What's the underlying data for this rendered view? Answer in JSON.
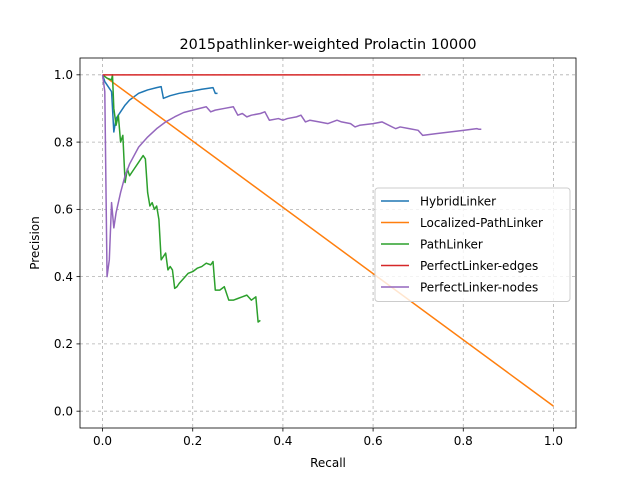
{
  "chart_data": {
    "type": "line",
    "title": "2015pathlinker-weighted Prolactin 10000",
    "xlabel": "Recall",
    "ylabel": "Precision",
    "xlim": [
      -0.05,
      1.05
    ],
    "ylim": [
      -0.05,
      1.05
    ],
    "xticks": [
      0.0,
      0.2,
      0.4,
      0.6,
      0.8,
      1.0
    ],
    "yticks": [
      0.0,
      0.2,
      0.4,
      0.6,
      0.8,
      1.0
    ],
    "tick_labels_x": [
      "0.0",
      "0.2",
      "0.4",
      "0.6",
      "0.8",
      "1.0"
    ],
    "tick_labels_y": [
      "0.0",
      "0.2",
      "0.4",
      "0.6",
      "0.8",
      "1.0"
    ],
    "grid": true,
    "legend_position": "center-right",
    "series": [
      {
        "name": "HybridLinker",
        "color": "#1f77b4",
        "x": [
          0.0,
          0.005,
          0.01,
          0.015,
          0.02,
          0.025,
          0.03,
          0.04,
          0.05,
          0.06,
          0.07,
          0.08,
          0.09,
          0.1,
          0.12,
          0.13,
          0.135,
          0.15,
          0.17,
          0.2,
          0.22,
          0.245,
          0.25,
          0.255
        ],
        "y": [
          1.0,
          0.98,
          0.97,
          0.96,
          0.95,
          0.83,
          0.87,
          0.89,
          0.91,
          0.925,
          0.935,
          0.945,
          0.95,
          0.955,
          0.962,
          0.965,
          0.93,
          0.938,
          0.945,
          0.952,
          0.957,
          0.962,
          0.945,
          0.945
        ]
      },
      {
        "name": "Localized-PathLinker",
        "color": "#ff7f0e",
        "x": [
          0.0,
          1.0
        ],
        "y": [
          1.0,
          0.015
        ]
      },
      {
        "name": "PathLinker",
        "color": "#2ca02c",
        "x": [
          0.0,
          0.01,
          0.02,
          0.022,
          0.025,
          0.03,
          0.035,
          0.04,
          0.045,
          0.05,
          0.055,
          0.06,
          0.07,
          0.08,
          0.09,
          0.095,
          0.1,
          0.105,
          0.11,
          0.115,
          0.12,
          0.125,
          0.13,
          0.135,
          0.14,
          0.145,
          0.15,
          0.155,
          0.16,
          0.165,
          0.17,
          0.18,
          0.19,
          0.2,
          0.21,
          0.22,
          0.23,
          0.24,
          0.245,
          0.25,
          0.26,
          0.27,
          0.28,
          0.29,
          0.3,
          0.31,
          0.32,
          0.33,
          0.34,
          0.345,
          0.35
        ],
        "y": [
          1.0,
          0.99,
          0.985,
          1.0,
          0.9,
          0.85,
          0.88,
          0.8,
          0.82,
          0.68,
          0.72,
          0.7,
          0.72,
          0.74,
          0.76,
          0.75,
          0.65,
          0.61,
          0.62,
          0.6,
          0.61,
          0.57,
          0.45,
          0.46,
          0.47,
          0.42,
          0.43,
          0.42,
          0.365,
          0.37,
          0.38,
          0.395,
          0.41,
          0.415,
          0.425,
          0.43,
          0.44,
          0.435,
          0.445,
          0.36,
          0.36,
          0.37,
          0.33,
          0.33,
          0.335,
          0.34,
          0.345,
          0.33,
          0.34,
          0.265,
          0.27
        ]
      },
      {
        "name": "PerfectLinker-edges",
        "color": "#d62728",
        "x": [
          0.0,
          0.705
        ],
        "y": [
          1.0,
          1.0
        ]
      },
      {
        "name": "PerfectLinker-nodes",
        "color": "#9467bd",
        "x": [
          0.0,
          0.005,
          0.01,
          0.015,
          0.02,
          0.025,
          0.03,
          0.04,
          0.05,
          0.06,
          0.08,
          0.1,
          0.12,
          0.14,
          0.16,
          0.18,
          0.2,
          0.23,
          0.24,
          0.25,
          0.27,
          0.29,
          0.3,
          0.31,
          0.32,
          0.33,
          0.35,
          0.36,
          0.37,
          0.39,
          0.4,
          0.41,
          0.43,
          0.44,
          0.45,
          0.46,
          0.48,
          0.5,
          0.52,
          0.53,
          0.55,
          0.56,
          0.57,
          0.6,
          0.62,
          0.65,
          0.66,
          0.68,
          0.7,
          0.71,
          0.74,
          0.77,
          0.8,
          0.83,
          0.835,
          0.84
        ],
        "y": [
          1.0,
          0.95,
          0.4,
          0.45,
          0.62,
          0.545,
          0.59,
          0.65,
          0.7,
          0.735,
          0.785,
          0.815,
          0.84,
          0.86,
          0.875,
          0.888,
          0.895,
          0.905,
          0.89,
          0.895,
          0.9,
          0.905,
          0.88,
          0.885,
          0.875,
          0.88,
          0.885,
          0.89,
          0.865,
          0.87,
          0.865,
          0.87,
          0.875,
          0.88,
          0.86,
          0.865,
          0.86,
          0.855,
          0.865,
          0.86,
          0.855,
          0.845,
          0.85,
          0.855,
          0.86,
          0.84,
          0.845,
          0.84,
          0.835,
          0.82,
          0.825,
          0.83,
          0.835,
          0.84,
          0.838,
          0.838
        ]
      }
    ]
  }
}
